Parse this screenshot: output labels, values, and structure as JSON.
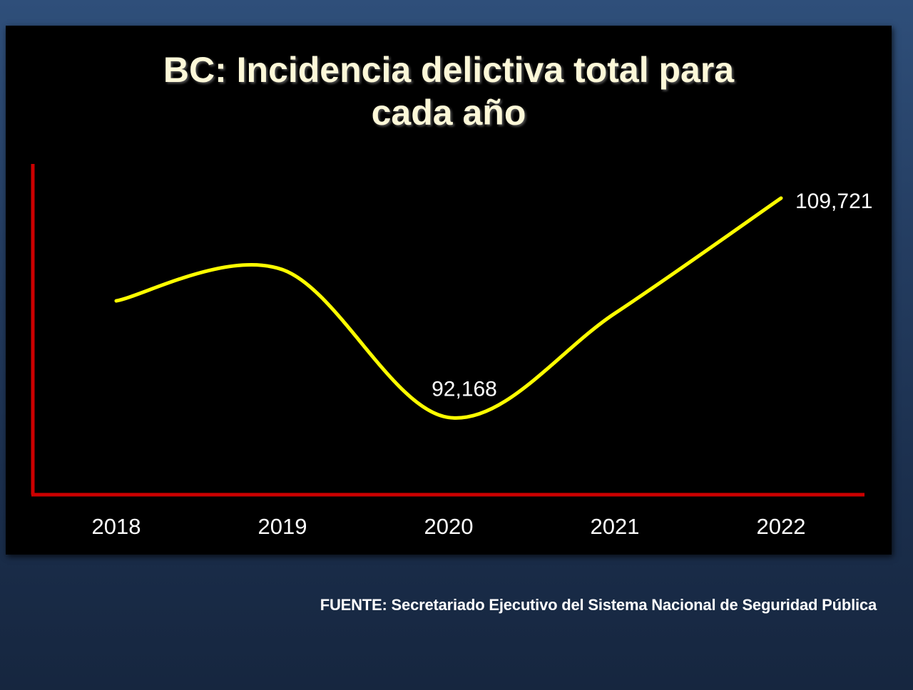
{
  "chart_data": {
    "type": "line",
    "title_lines": [
      "BC: Incidencia delictiva total para",
      "cada año"
    ],
    "categories": [
      "2018",
      "2019",
      "2020",
      "2021",
      "2022"
    ],
    "values": [
      101500,
      104000,
      92168,
      100500,
      109721
    ],
    "data_labels": [
      {
        "index": 2,
        "text": "92,168"
      },
      {
        "index": 4,
        "text": "109,721"
      }
    ],
    "ylim": [
      88500,
      112000
    ],
    "grid": false,
    "legend": "none",
    "colors": {
      "line": "#ffff00",
      "axis": "#cc0000",
      "labels": "#ffffff",
      "title": "#fdf8d8"
    }
  },
  "footer": {
    "source": "FUENTE: Secretariado Ejecutivo del Sistema Nacional de Seguridad Pública"
  }
}
